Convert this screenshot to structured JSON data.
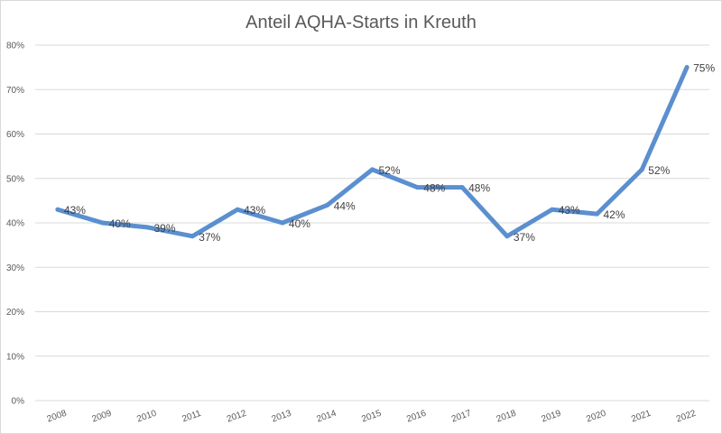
{
  "chart_data": {
    "type": "line",
    "title": "Anteil AQHA-Starts in Kreuth",
    "xlabel": "",
    "ylabel": "",
    "categories": [
      "2008",
      "2009",
      "2010",
      "2011",
      "2012",
      "2013",
      "2014",
      "2015",
      "2016",
      "2017",
      "2018",
      "2019",
      "2020",
      "2021",
      "2022"
    ],
    "series": [
      {
        "values": [
          43,
          40,
          39,
          37,
          43,
          40,
          44,
          52,
          48,
          48,
          37,
          43,
          42,
          52,
          75
        ],
        "labels": [
          "43%",
          "40%",
          "39%",
          "37%",
          "43%",
          "40%",
          "44%",
          "52%",
          "48%",
          "48%",
          "37%",
          "43%",
          "42%",
          "52%",
          "75%"
        ],
        "color": "#5b8fd0"
      }
    ],
    "ylim": [
      0,
      80
    ],
    "yticks": [
      0,
      10,
      20,
      30,
      40,
      50,
      60,
      70,
      80
    ],
    "ytick_labels": [
      "0%",
      "10%",
      "20%",
      "30%",
      "40%",
      "50%",
      "60%",
      "70%",
      "80%"
    ],
    "grid": true,
    "legend": "none"
  }
}
